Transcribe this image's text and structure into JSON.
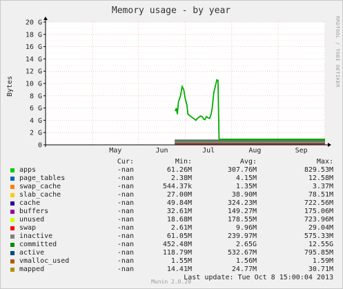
{
  "chart_data": {
    "type": "line",
    "title": "Memory usage - by year",
    "ylabel": "Bytes",
    "side_label": "RRDTOOL / TOBI OETIKER",
    "footer": "Munin 2.0.20",
    "x_ticks": [
      "May",
      "Jun",
      "Jul",
      "Aug",
      "Sep"
    ],
    "y_ticks": [
      "0",
      "2 G",
      "4 G",
      "6 G",
      "8 G",
      "10 G",
      "12 G",
      "14 G",
      "16 G",
      "18 G",
      "20 G"
    ],
    "ylim": [
      0,
      20
    ],
    "xlim": [
      0,
      53
    ],
    "x": [
      24.6,
      24.8,
      25.0,
      25.2,
      25.4,
      25.6,
      25.9,
      26.2,
      26.5,
      26.8,
      27.0,
      27.3,
      27.6,
      27.9,
      28.2,
      28.5,
      28.8,
      29.1,
      29.4,
      29.7,
      30.0,
      30.2,
      30.5,
      30.8,
      31.1,
      31.4,
      31.6,
      31.9,
      32.2,
      32.5,
      32.7,
      32.9
    ],
    "series": [
      {
        "name": "committed",
        "color": "#00aa00",
        "values": [
          5.5,
          6.0,
          5.0,
          7.0,
          7.5,
          8.0,
          9.5,
          9.0,
          7.5,
          6.5,
          5.0,
          4.8,
          4.6,
          4.4,
          4.2,
          4.0,
          4.3,
          4.5,
          4.7,
          4.6,
          4.2,
          4.1,
          4.6,
          4.4,
          4.3,
          5.0,
          6.0,
          8.5,
          9.6,
          10.6,
          10.5,
          0.9
        ]
      }
    ],
    "bands": [
      {
        "name": "apps",
        "color": "#00cc00",
        "level": 0.3
      },
      {
        "name": "page_tables",
        "color": "#0066b3",
        "level": 0.2
      },
      {
        "name": "swap_cache",
        "color": "#ff8000",
        "level": 0.1
      },
      {
        "name": "slab_cache",
        "color": "#ffcc00",
        "level": 0.4
      },
      {
        "name": "cache",
        "color": "#330099",
        "level": 0.5
      },
      {
        "name": "buffers",
        "color": "#990099",
        "level": 0.15
      },
      {
        "name": "unused",
        "color": "#ccff00",
        "level": 0.6
      },
      {
        "name": "active",
        "color": "#00487d",
        "level": 0.7
      },
      {
        "name": "vmalloc_used",
        "color": "#b35a00",
        "level": 0.05
      },
      {
        "name": "inactive",
        "color": "#808080",
        "level": 0.8
      }
    ],
    "band_xrange": [
      24.5,
      53
    ],
    "band_tail": {
      "level": 0.9,
      "from": 32.9,
      "to": 53,
      "color": "#00aa00"
    }
  },
  "legend": {
    "headers": {
      "cur": "Cur:",
      "min": "Min:",
      "avg": "Avg:",
      "max": "Max:"
    },
    "rows": [
      {
        "name": "apps",
        "color": "#00cc00",
        "cur": "-nan",
        "min": "61.26M",
        "avg": "307.76M",
        "max": "829.53M"
      },
      {
        "name": "page_tables",
        "color": "#0066b3",
        "cur": "-nan",
        "min": "2.38M",
        "avg": "4.15M",
        "max": "12.58M"
      },
      {
        "name": "swap_cache",
        "color": "#ff8000",
        "cur": "-nan",
        "min": "544.37k",
        "avg": "1.35M",
        "max": "3.37M"
      },
      {
        "name": "slab_cache",
        "color": "#ffcc00",
        "cur": "-nan",
        "min": "27.00M",
        "avg": "38.90M",
        "max": "78.51M"
      },
      {
        "name": "cache",
        "color": "#330099",
        "cur": "-nan",
        "min": "49.84M",
        "avg": "324.23M",
        "max": "722.56M"
      },
      {
        "name": "buffers",
        "color": "#990099",
        "cur": "-nan",
        "min": "32.61M",
        "avg": "149.27M",
        "max": "175.06M"
      },
      {
        "name": "unused",
        "color": "#ccff00",
        "cur": "-nan",
        "min": "18.68M",
        "avg": "178.55M",
        "max": "723.96M"
      },
      {
        "name": "swap",
        "color": "#ff0000",
        "cur": "-nan",
        "min": "2.61M",
        "avg": "9.96M",
        "max": "29.04M"
      },
      {
        "name": "inactive",
        "color": "#808080",
        "cur": "-nan",
        "min": "61.05M",
        "avg": "239.97M",
        "max": "575.33M"
      },
      {
        "name": "committed",
        "color": "#008f00",
        "cur": "-nan",
        "min": "452.48M",
        "avg": "2.65G",
        "max": "12.55G"
      },
      {
        "name": "active",
        "color": "#00487d",
        "cur": "-nan",
        "min": "118.79M",
        "avg": "532.67M",
        "max": "795.85M"
      },
      {
        "name": "vmalloc_used",
        "color": "#b35a00",
        "cur": "-nan",
        "min": "1.55M",
        "avg": "1.56M",
        "max": "1.59M"
      },
      {
        "name": "mapped",
        "color": "#b38f00",
        "cur": "-nan",
        "min": "14.41M",
        "avg": "24.77M",
        "max": "30.71M"
      }
    ],
    "last_update": "Last update: Tue Oct  8 15:00:04 2013"
  }
}
